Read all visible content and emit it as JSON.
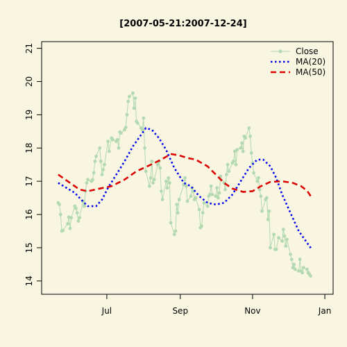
{
  "chart_data": {
    "type": "line",
    "title": "[2007-05-21:2007-12-24]",
    "xlabel": "",
    "ylabel": "",
    "x_range": [
      "2007-05-07",
      "2008-01-08"
    ],
    "ylim": [
      13.6,
      21.2
    ],
    "y_ticks": [
      14,
      15,
      16,
      17,
      18,
      19,
      20,
      21
    ],
    "x_ticks": [
      {
        "date": "2007-07-01",
        "label": "Jul"
      },
      {
        "date": "2007-09-01",
        "label": "Sep"
      },
      {
        "date": "2007-11-01",
        "label": "Nov"
      },
      {
        "date": "2008-01-01",
        "label": "Jan"
      }
    ],
    "grid": false,
    "legend_position": "top-right",
    "series": [
      {
        "name": "Close",
        "style": "line-points",
        "color": "#b3d9b0",
        "points": [
          [
            "2007-05-21",
            16.35
          ],
          [
            "2007-05-22",
            16.3
          ],
          [
            "2007-05-23",
            16.0
          ],
          [
            "2007-05-24",
            15.5
          ],
          [
            "2007-05-25",
            15.52
          ],
          [
            "2007-05-29",
            15.72
          ],
          [
            "2007-05-30",
            15.92
          ],
          [
            "2007-05-31",
            15.58
          ],
          [
            "2007-06-01",
            15.9
          ],
          [
            "2007-06-04",
            16.25
          ],
          [
            "2007-06-05",
            16.18
          ],
          [
            "2007-06-06",
            16.05
          ],
          [
            "2007-06-07",
            15.8
          ],
          [
            "2007-06-08",
            15.9
          ],
          [
            "2007-06-11",
            16.4
          ],
          [
            "2007-06-12",
            16.25
          ],
          [
            "2007-06-13",
            16.7
          ],
          [
            "2007-06-14",
            16.95
          ],
          [
            "2007-06-15",
            17.05
          ],
          [
            "2007-06-18",
            17.0
          ],
          [
            "2007-06-19",
            17.05
          ],
          [
            "2007-06-20",
            17.25
          ],
          [
            "2007-06-21",
            17.6
          ],
          [
            "2007-06-22",
            17.75
          ],
          [
            "2007-06-25",
            18.0
          ],
          [
            "2007-06-26",
            17.6
          ],
          [
            "2007-06-27",
            17.2
          ],
          [
            "2007-06-28",
            17.35
          ],
          [
            "2007-06-29",
            17.5
          ],
          [
            "2007-07-02",
            18.2
          ],
          [
            "2007-07-03",
            17.9
          ],
          [
            "2007-07-05",
            18.3
          ],
          [
            "2007-07-06",
            18.25
          ],
          [
            "2007-07-09",
            18.2
          ],
          [
            "2007-07-10",
            18.25
          ],
          [
            "2007-07-11",
            18.0
          ],
          [
            "2007-07-12",
            18.48
          ],
          [
            "2007-07-13",
            18.45
          ],
          [
            "2007-07-16",
            18.55
          ],
          [
            "2007-07-17",
            18.62
          ],
          [
            "2007-07-18",
            19.0
          ],
          [
            "2007-07-19",
            19.4
          ],
          [
            "2007-07-20",
            19.55
          ],
          [
            "2007-07-23",
            19.65
          ],
          [
            "2007-07-24",
            19.2
          ],
          [
            "2007-07-25",
            19.5
          ],
          [
            "2007-07-26",
            18.8
          ],
          [
            "2007-07-27",
            18.75
          ],
          [
            "2007-07-30",
            18.6
          ],
          [
            "2007-07-31",
            18.55
          ],
          [
            "2007-08-01",
            18.9
          ],
          [
            "2007-08-02",
            18.0
          ],
          [
            "2007-08-03",
            17.3
          ],
          [
            "2007-08-06",
            16.85
          ],
          [
            "2007-08-07",
            17.1
          ],
          [
            "2007-08-08",
            17.6
          ],
          [
            "2007-08-09",
            16.95
          ],
          [
            "2007-08-10",
            17.05
          ],
          [
            "2007-08-13",
            17.5
          ],
          [
            "2007-08-14",
            17.6
          ],
          [
            "2007-08-15",
            17.4
          ],
          [
            "2007-08-16",
            16.7
          ],
          [
            "2007-08-17",
            16.45
          ],
          [
            "2007-08-20",
            17.0
          ],
          [
            "2007-08-21",
            16.8
          ],
          [
            "2007-08-22",
            17.1
          ],
          [
            "2007-08-23",
            16.95
          ],
          [
            "2007-08-24",
            15.75
          ],
          [
            "2007-08-27",
            15.4
          ],
          [
            "2007-08-28",
            15.5
          ],
          [
            "2007-08-29",
            16.3
          ],
          [
            "2007-08-30",
            16.05
          ],
          [
            "2007-08-31",
            16.45
          ],
          [
            "2007-09-04",
            16.9
          ],
          [
            "2007-09-05",
            17.1
          ],
          [
            "2007-09-06",
            16.85
          ],
          [
            "2007-09-07",
            16.4
          ],
          [
            "2007-09-10",
            16.55
          ],
          [
            "2007-09-11",
            16.8
          ],
          [
            "2007-09-12",
            16.7
          ],
          [
            "2007-09-13",
            16.45
          ],
          [
            "2007-09-14",
            16.5
          ],
          [
            "2007-09-17",
            16.15
          ],
          [
            "2007-09-18",
            15.6
          ],
          [
            "2007-09-19",
            15.65
          ],
          [
            "2007-09-20",
            16.05
          ],
          [
            "2007-09-21",
            16.35
          ],
          [
            "2007-09-24",
            16.25
          ],
          [
            "2007-09-25",
            16.55
          ],
          [
            "2007-09-26",
            16.6
          ],
          [
            "2007-09-27",
            16.85
          ],
          [
            "2007-09-28",
            16.6
          ],
          [
            "2007-10-01",
            16.55
          ],
          [
            "2007-10-02",
            16.8
          ],
          [
            "2007-10-03",
            16.5
          ],
          [
            "2007-10-04",
            16.65
          ],
          [
            "2007-10-05",
            17.15
          ],
          [
            "2007-10-08",
            16.95
          ],
          [
            "2007-10-09",
            16.75
          ],
          [
            "2007-10-10",
            17.2
          ],
          [
            "2007-10-11",
            17.5
          ],
          [
            "2007-10-12",
            17.3
          ],
          [
            "2007-10-15",
            17.55
          ],
          [
            "2007-10-16",
            17.6
          ],
          [
            "2007-10-17",
            17.9
          ],
          [
            "2007-10-18",
            17.5
          ],
          [
            "2007-10-19",
            17.95
          ],
          [
            "2007-10-22",
            18.0
          ],
          [
            "2007-10-23",
            18.15
          ],
          [
            "2007-10-24",
            17.9
          ],
          [
            "2007-10-25",
            18.35
          ],
          [
            "2007-10-26",
            18.3
          ],
          [
            "2007-10-29",
            18.6
          ],
          [
            "2007-10-30",
            18.35
          ],
          [
            "2007-10-31",
            17.85
          ],
          [
            "2007-11-01",
            17.55
          ],
          [
            "2007-11-02",
            17.25
          ],
          [
            "2007-11-05",
            17.0
          ],
          [
            "2007-11-06",
            17.1
          ],
          [
            "2007-11-07",
            16.75
          ],
          [
            "2007-11-08",
            16.55
          ],
          [
            "2007-11-09",
            16.1
          ],
          [
            "2007-11-12",
            16.45
          ],
          [
            "2007-11-13",
            16.5
          ],
          [
            "2007-11-14",
            15.85
          ],
          [
            "2007-11-15",
            16.1
          ],
          [
            "2007-11-16",
            15.0
          ],
          [
            "2007-11-19",
            15.4
          ],
          [
            "2007-11-20",
            14.95
          ],
          [
            "2007-11-21",
            14.95
          ],
          [
            "2007-11-23",
            15.3
          ],
          [
            "2007-11-26",
            15.2
          ],
          [
            "2007-11-27",
            15.55
          ],
          [
            "2007-11-28",
            15.35
          ],
          [
            "2007-11-29",
            15.05
          ],
          [
            "2007-11-30",
            15.25
          ],
          [
            "2007-12-03",
            14.8
          ],
          [
            "2007-12-04",
            14.65
          ],
          [
            "2007-12-05",
            14.4
          ],
          [
            "2007-12-06",
            14.5
          ],
          [
            "2007-12-07",
            14.35
          ],
          [
            "2007-12-10",
            14.3
          ],
          [
            "2007-12-11",
            14.65
          ],
          [
            "2007-12-12",
            14.3
          ],
          [
            "2007-12-13",
            14.25
          ],
          [
            "2007-12-14",
            14.4
          ],
          [
            "2007-12-17",
            14.35
          ],
          [
            "2007-12-18",
            14.25
          ],
          [
            "2007-12-19",
            14.2
          ],
          [
            "2007-12-20",
            14.15
          ]
        ]
      },
      {
        "name": "MA(20)",
        "style": "dotted",
        "color": "#0000ee",
        "points": [
          [
            "2007-05-21",
            16.95
          ],
          [
            "2007-05-28",
            16.8
          ],
          [
            "2007-06-04",
            16.65
          ],
          [
            "2007-06-08",
            16.5
          ],
          [
            "2007-06-12",
            16.35
          ],
          [
            "2007-06-15",
            16.25
          ],
          [
            "2007-06-22",
            16.25
          ],
          [
            "2007-06-27",
            16.45
          ],
          [
            "2007-07-02",
            16.8
          ],
          [
            "2007-07-09",
            17.2
          ],
          [
            "2007-07-16",
            17.6
          ],
          [
            "2007-07-23",
            18.05
          ],
          [
            "2007-07-30",
            18.4
          ],
          [
            "2007-08-03",
            18.6
          ],
          [
            "2007-08-08",
            18.55
          ],
          [
            "2007-08-14",
            18.3
          ],
          [
            "2007-08-20",
            17.95
          ],
          [
            "2007-08-27",
            17.4
          ],
          [
            "2007-09-04",
            16.95
          ],
          [
            "2007-09-10",
            16.85
          ],
          [
            "2007-09-17",
            16.55
          ],
          [
            "2007-09-24",
            16.35
          ],
          [
            "2007-10-01",
            16.3
          ],
          [
            "2007-10-08",
            16.35
          ],
          [
            "2007-10-15",
            16.6
          ],
          [
            "2007-10-22",
            17.0
          ],
          [
            "2007-10-29",
            17.4
          ],
          [
            "2007-11-05",
            17.65
          ],
          [
            "2007-11-10",
            17.65
          ],
          [
            "2007-11-16",
            17.45
          ],
          [
            "2007-11-21",
            17.1
          ],
          [
            "2007-11-26",
            16.6
          ],
          [
            "2007-12-03",
            16.05
          ],
          [
            "2007-12-10",
            15.5
          ],
          [
            "2007-12-17",
            15.15
          ],
          [
            "2007-12-21",
            14.95
          ]
        ]
      },
      {
        "name": "MA(50)",
        "style": "dashed",
        "color": "#dd0000",
        "points": [
          [
            "2007-05-21",
            17.2
          ],
          [
            "2007-05-31",
            16.95
          ],
          [
            "2007-06-08",
            16.75
          ],
          [
            "2007-06-15",
            16.7
          ],
          [
            "2007-06-25",
            16.78
          ],
          [
            "2007-07-05",
            16.85
          ],
          [
            "2007-07-16",
            17.05
          ],
          [
            "2007-07-26",
            17.3
          ],
          [
            "2007-08-06",
            17.48
          ],
          [
            "2007-08-16",
            17.65
          ],
          [
            "2007-08-24",
            17.82
          ],
          [
            "2007-08-31",
            17.78
          ],
          [
            "2007-09-07",
            17.7
          ],
          [
            "2007-09-14",
            17.65
          ],
          [
            "2007-09-24",
            17.45
          ],
          [
            "2007-10-01",
            17.2
          ],
          [
            "2007-10-08",
            16.95
          ],
          [
            "2007-10-15",
            16.78
          ],
          [
            "2007-10-24",
            16.68
          ],
          [
            "2007-11-01",
            16.7
          ],
          [
            "2007-11-08",
            16.85
          ],
          [
            "2007-11-16",
            16.98
          ],
          [
            "2007-11-26",
            17.0
          ],
          [
            "2007-12-05",
            16.95
          ],
          [
            "2007-12-12",
            16.85
          ],
          [
            "2007-12-17",
            16.72
          ],
          [
            "2007-12-21",
            16.5
          ]
        ]
      }
    ]
  }
}
